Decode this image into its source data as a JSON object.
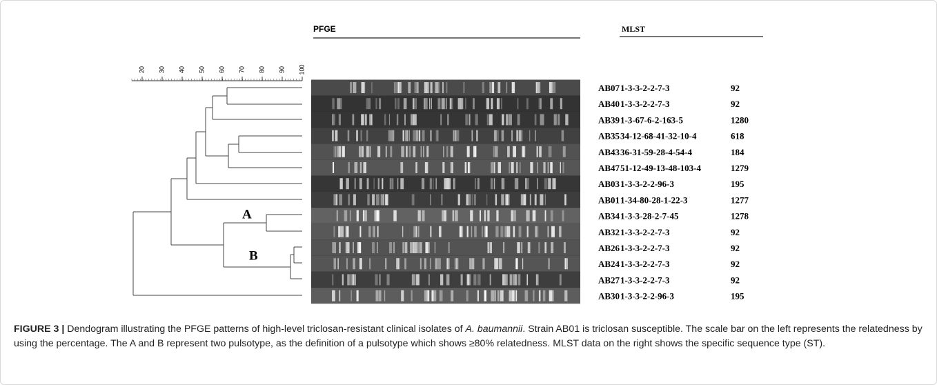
{
  "header": {
    "pfge": "PFGE",
    "mlst": "MLST"
  },
  "scale": {
    "ticks": [
      20,
      30,
      40,
      50,
      60,
      70,
      80,
      90,
      100
    ]
  },
  "clusters": {
    "a": "A",
    "b": "B"
  },
  "rows": [
    {
      "id": "AB07",
      "profile": "1-3-3-2-2-7-3",
      "st": "92"
    },
    {
      "id": "AB40",
      "profile": "1-3-3-2-2-7-3",
      "st": "92"
    },
    {
      "id": "AB39",
      "profile": "1-3-67-6-2-163-5",
      "st": "1280"
    },
    {
      "id": "AB35",
      "profile": "34-12-68-41-32-10-4",
      "st": "618"
    },
    {
      "id": "AB43",
      "profile": "36-31-59-28-4-54-4",
      "st": "184"
    },
    {
      "id": "AB47",
      "profile": "51-12-49-13-48-103-4",
      "st": "1279"
    },
    {
      "id": "AB03",
      "profile": "1-3-3-2-2-96-3",
      "st": "195"
    },
    {
      "id": "AB01",
      "profile": "1-34-80-28-1-22-3",
      "st": "1277"
    },
    {
      "id": "AB34",
      "profile": "1-3-3-28-2-7-45",
      "st": "1278"
    },
    {
      "id": "AB32",
      "profile": "1-3-3-2-2-7-3",
      "st": "92"
    },
    {
      "id": "AB26",
      "profile": "1-3-3-2-2-7-3",
      "st": "92"
    },
    {
      "id": "AB24",
      "profile": "1-3-3-2-2-7-3",
      "st": "92"
    },
    {
      "id": "AB27",
      "profile": "1-3-3-2-2-7-3",
      "st": "92"
    },
    {
      "id": "AB30",
      "profile": "1-3-3-2-2-96-3",
      "st": "195"
    }
  ],
  "caption": {
    "label": "FIGURE 3 |",
    "text_1": " Dendogram illustrating the PFGE patterns of high-level triclosan-resistant clinical isolates of ",
    "species": "A. baumannii",
    "text_2": ". Strain AB01 is triclosan susceptible. The scale bar on the left represents the relatedness by using the percentage. The A and B represent two pulsotype, as the definition of a pulsotype which shows ≥80% relatedness. MLST data on the right shows the specific sequence type (ST)."
  }
}
